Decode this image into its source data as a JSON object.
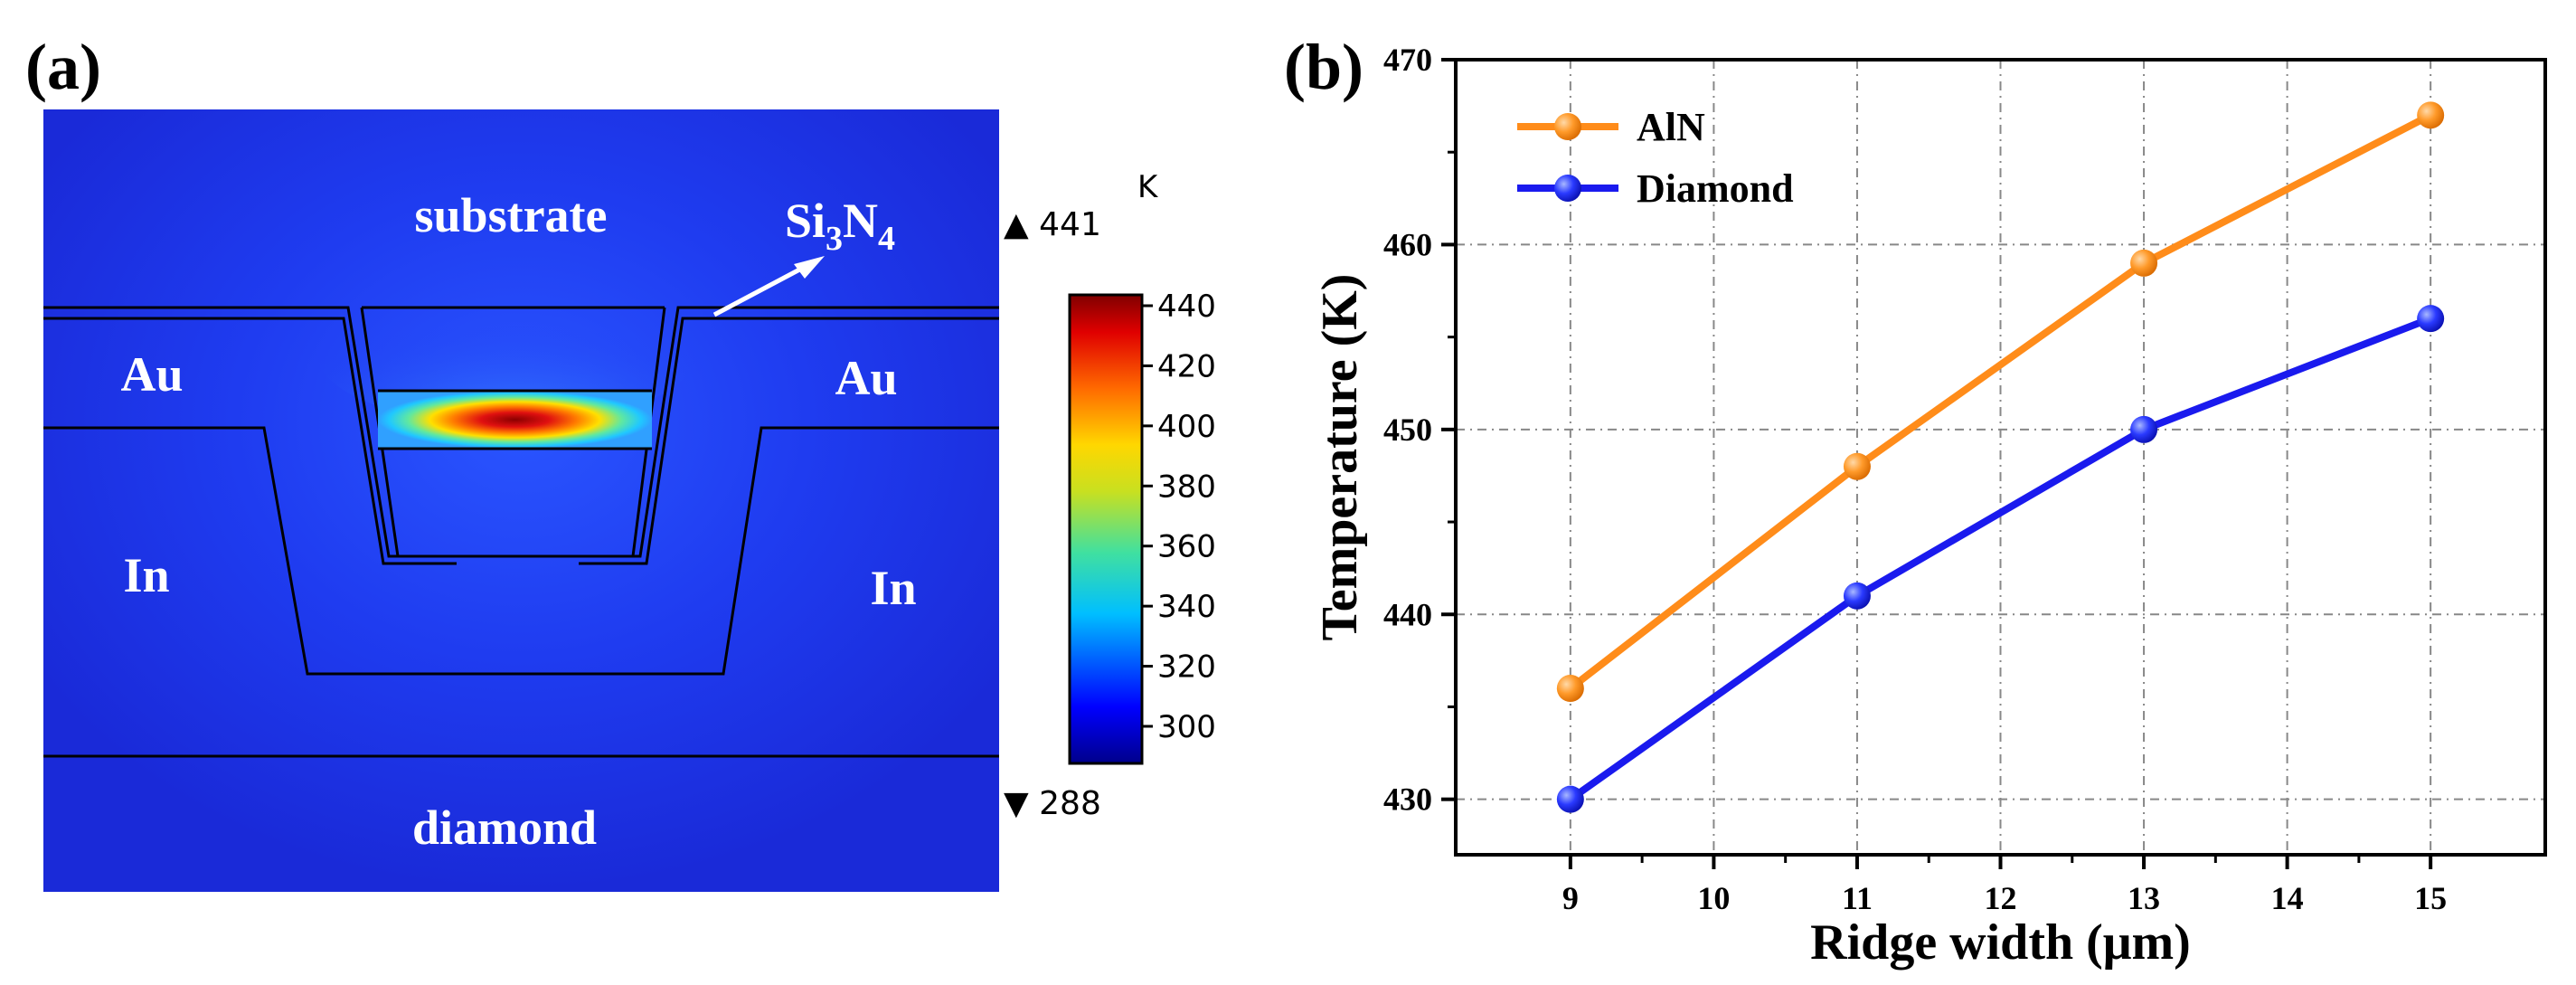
{
  "panel_a": {
    "label": "(a)",
    "regions": {
      "substrate": "substrate",
      "au_left": "Au",
      "au_right": "Au",
      "in_left": "In",
      "in_right": "In",
      "diamond": "diamond",
      "si3n4_main": "Si",
      "si3n4_sub1": "3",
      "si3n4_n": "N",
      "si3n4_sub2": "4"
    },
    "colorbar": {
      "unit": "K",
      "max_marker": "▲ 441",
      "min_marker": "▼ 288",
      "ticks": [
        "440",
        "420",
        "400",
        "380",
        "360",
        "340",
        "320",
        "300"
      ]
    },
    "colors": {
      "background_blue": "#1a2fe0",
      "hot": "#8b0000"
    }
  },
  "panel_b": {
    "label": "(b)"
  },
  "chart_data": {
    "type": "line",
    "title": "",
    "xlabel": "Ridge width (μm)",
    "ylabel": "Temperature (K)",
    "xlim": [
      8.2,
      15.8
    ],
    "ylim": [
      427,
      470
    ],
    "x_ticks": [
      "9",
      "10",
      "11",
      "12",
      "13",
      "14",
      "15"
    ],
    "y_ticks": [
      "430",
      "440",
      "450",
      "460",
      "470"
    ],
    "grid": true,
    "legend_position": "top-left",
    "x": [
      9,
      11,
      13,
      15
    ],
    "series": [
      {
        "name": "AlN",
        "color": "#ff8c1a",
        "values": [
          436,
          448,
          459,
          467
        ]
      },
      {
        "name": "Diamond",
        "color": "#1a1aee",
        "values": [
          430,
          441,
          450,
          456
        ]
      }
    ]
  }
}
